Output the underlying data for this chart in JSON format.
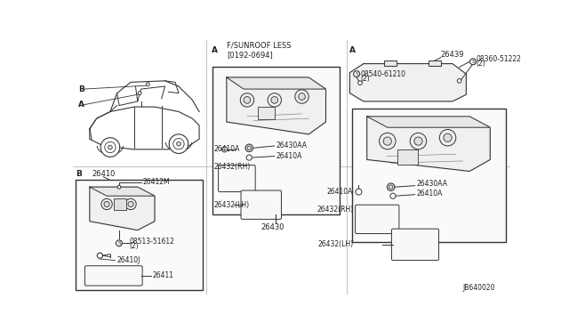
{
  "bg_color": "#ffffff",
  "line_color": "#333333",
  "text_color": "#222222",
  "diagram_label": "JB640020",
  "sunroof_label": "F/SUNROOF LESS\n[0192-0694]",
  "parts": {
    "26410": "26410",
    "26412M": "26412M",
    "08513_51612": "08513-51612",
    "08513_51612_qty": "(2)",
    "26410J": "26410J",
    "26411": "26411",
    "26410A": "26410A",
    "26430AA": "26430AA",
    "26432RH": "26432(RH)",
    "26432LH": "26432(LH)",
    "26430": "26430",
    "26439": "26439",
    "08540_61210": "08540-61210",
    "08540_qty": "(2)",
    "08360_51222": "08360-51222",
    "08360_qty": "(2)"
  }
}
